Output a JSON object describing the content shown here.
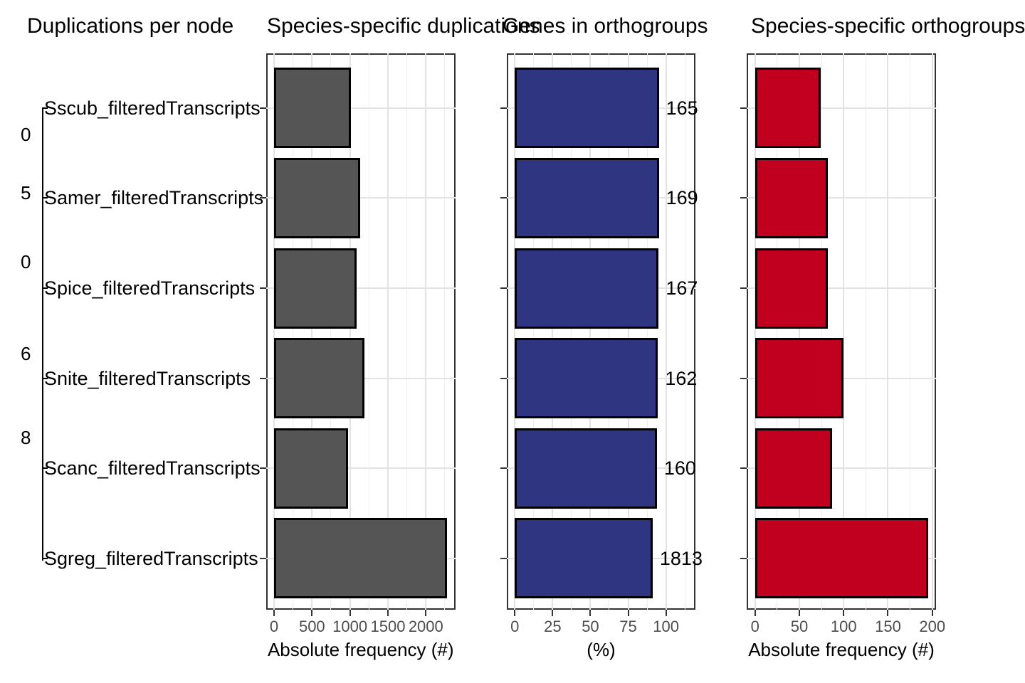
{
  "figure": {
    "title_dup_per_node": "Duplications per node",
    "title_species_dup": "Species-specific duplications",
    "title_genes_og": "Genes in orthogroups",
    "title_species_og": "Species-specific orthogroups"
  },
  "tree": {
    "species": [
      "Sscub_filteredTranscripts",
      "Samer_filteredTranscripts",
      "Spice_filteredTranscripts",
      "Snite_filteredTranscripts",
      "Scanc_filteredTranscripts",
      "Sgreg_filteredTranscripts"
    ],
    "node_label_fragments": [
      "0",
      "5",
      "0",
      "6",
      "8"
    ]
  },
  "colors": {
    "gray_bar": "#555555",
    "blue_bar": "#2f3580",
    "red_bar": "#c0001e",
    "panel_border": "#333333",
    "tick_label": "#4d4d4d",
    "gridline": "#e3e3e3"
  },
  "chart_data": [
    {
      "type": "bar",
      "orientation": "horizontal",
      "title": "Species-specific duplications",
      "categories": [
        "Sscub_filteredTranscripts",
        "Samer_filteredTranscripts",
        "Spice_filteredTranscripts",
        "Snite_filteredTranscripts",
        "Scanc_filteredTranscripts",
        "Sgreg_filteredTranscripts"
      ],
      "values": [
        1010,
        1130,
        1090,
        1195,
        975,
        2280
      ],
      "xlabel": "Absolute frequency (#)",
      "xticks": [
        0,
        500,
        1000,
        1500,
        2000
      ],
      "xtick_labels": [
        "0",
        "500",
        "1000",
        "1500",
        "2000"
      ],
      "xlim": [
        0,
        2390
      ],
      "grid": true,
      "bar_color": "#555555"
    },
    {
      "type": "bar",
      "orientation": "horizontal",
      "title": "Genes in orthogroups",
      "categories": [
        "Sscub_filteredTranscripts",
        "Samer_filteredTranscripts",
        "Spice_filteredTranscripts",
        "Snite_filteredTranscripts",
        "Scanc_filteredTranscripts",
        "Sgreg_filteredTranscripts"
      ],
      "values": [
        95.3,
        95.3,
        95.2,
        94.7,
        94.0,
        91.2
      ],
      "bar_labels": [
        "165",
        "169",
        "167",
        "162",
        "160",
        "1813"
      ],
      "xlabel": "(%)",
      "xticks": [
        0,
        25,
        50,
        75,
        100
      ],
      "xtick_labels": [
        "0",
        "25",
        "50",
        "75",
        "100"
      ],
      "xlim": [
        0,
        119.6
      ],
      "grid": true,
      "bar_color": "#2f3580"
    },
    {
      "type": "bar",
      "orientation": "horizontal",
      "title": "Species-specific orthogroups",
      "categories": [
        "Sscub_filteredTranscripts",
        "Samer_filteredTranscripts",
        "Spice_filteredTranscripts",
        "Snite_filteredTranscripts",
        "Scanc_filteredTranscripts",
        "Sgreg_filteredTranscripts"
      ],
      "values": [
        74,
        82,
        82,
        100,
        87,
        195
      ],
      "xlabel": "Absolute frequency (#)",
      "xticks": [
        0,
        50,
        100,
        150,
        200
      ],
      "xtick_labels": [
        "0",
        "50",
        "100",
        "150",
        "200"
      ],
      "xlim": [
        0,
        204
      ],
      "grid": true,
      "bar_color": "#c0001e"
    }
  ]
}
